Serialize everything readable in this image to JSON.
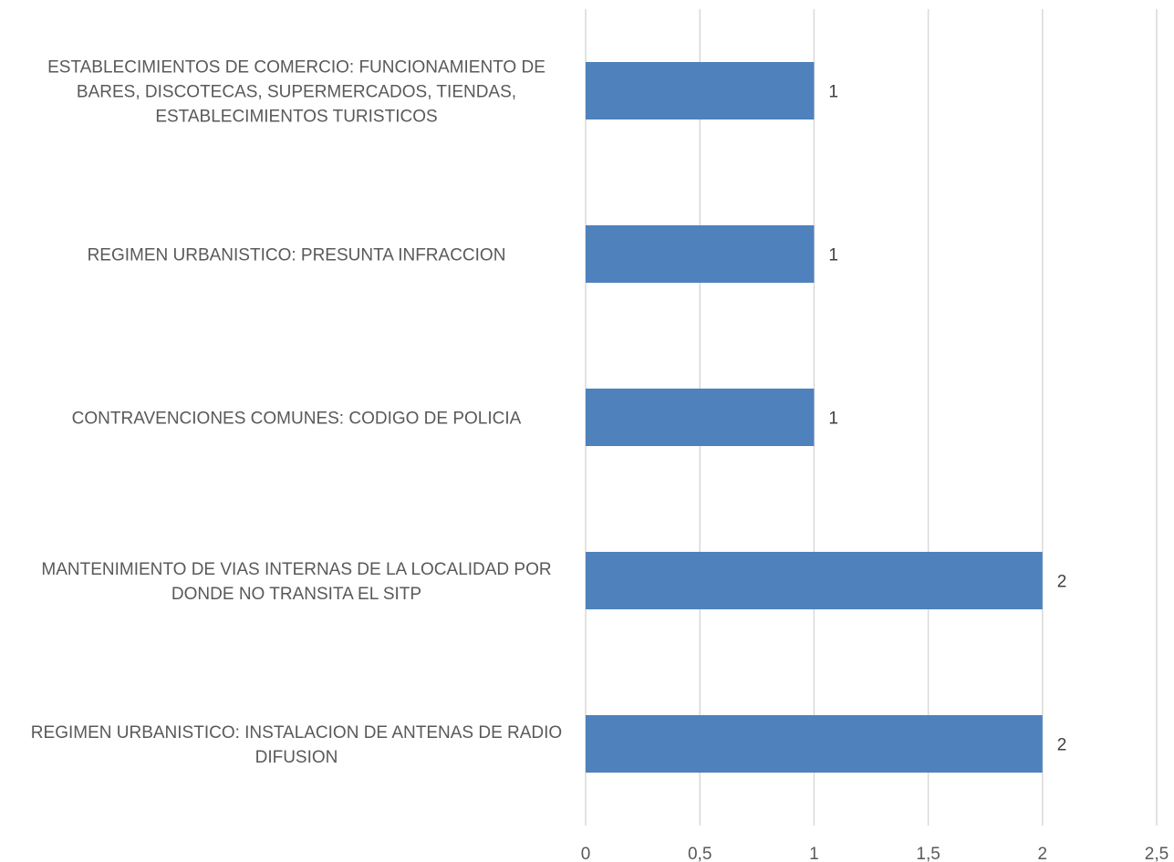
{
  "chart_data": {
    "type": "bar",
    "orientation": "horizontal",
    "categories": [
      [
        "ESTABLECIMIENTOS DE COMERCIO: FUNCIONAMIENTO DE",
        "BARES, DISCOTECAS, SUPERMERCADOS, TIENDAS,",
        "ESTABLECIMIENTOS TURISTICOS"
      ],
      [
        "REGIMEN URBANISTICO: PRESUNTA INFRACCION"
      ],
      [
        "CONTRAVENCIONES COMUNES: CODIGO DE POLICIA"
      ],
      [
        "MANTENIMIENTO DE VIAS INTERNAS DE LA LOCALIDAD POR",
        "DONDE NO TRANSITA EL SITP"
      ],
      [
        "REGIMEN URBANISTICO: INSTALACION DE ANTENAS DE RADIO",
        "DIFUSION"
      ]
    ],
    "values": [
      1,
      1,
      1,
      2,
      2
    ],
    "data_labels": [
      "1",
      "1",
      "1",
      "2",
      "2"
    ],
    "xlim": [
      0,
      2.5
    ],
    "x_ticks": [
      0,
      0.5,
      1,
      1.5,
      2,
      2.5
    ],
    "x_tick_labels": [
      "0",
      "0,5",
      "1",
      "1,5",
      "2",
      "2,5"
    ],
    "grid": "vertical",
    "legend": "none",
    "colors": {
      "bar": "#4f81bd",
      "grid": "#d9d9d9",
      "text": "#595959"
    }
  }
}
